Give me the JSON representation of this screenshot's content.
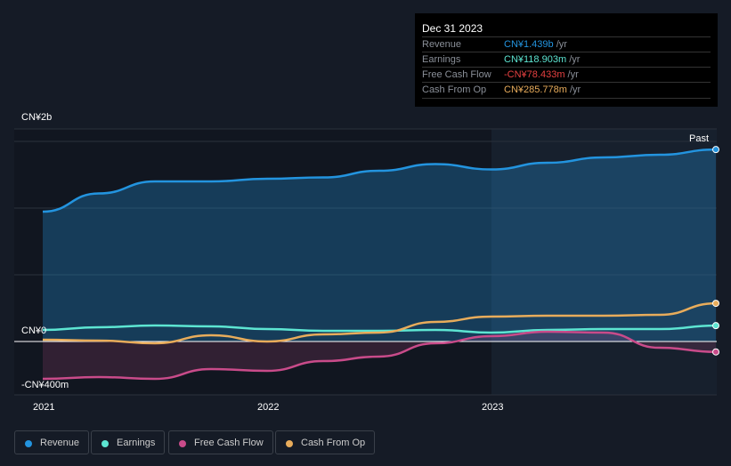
{
  "tooltip": {
    "date": "Dec 31 2023",
    "rows": [
      {
        "label": "Revenue",
        "value": "CN¥1.439b",
        "unit": "/yr",
        "color": "#2394df"
      },
      {
        "label": "Earnings",
        "value": "CN¥118.903m",
        "unit": "/yr",
        "color": "#5de5d2"
      },
      {
        "label": "Free Cash Flow",
        "value": "-CN¥78.433m",
        "unit": "/yr",
        "color": "#e64141"
      },
      {
        "label": "Cash From Op",
        "value": "CN¥285.778m",
        "unit": "/yr",
        "color": "#e8ac5b"
      }
    ]
  },
  "chart_data": {
    "type": "line",
    "x": [
      2021,
      2021.25,
      2021.5,
      2021.75,
      2022,
      2022.25,
      2022.5,
      2022.75,
      2023,
      2023.25,
      2023.5,
      2023.75,
      2024
    ],
    "ylim": [
      -0.4,
      1.59
    ],
    "yunit": "CN¥ billions",
    "y_tick_labels": [
      "CN¥2b",
      "CN¥0",
      "-CN¥400m"
    ],
    "x_tick_labels": [
      "2021",
      "2022",
      "2023"
    ],
    "past_label": "Past",
    "series": [
      {
        "name": "Revenue",
        "color": "#2394df",
        "values": [
          0.973,
          1.11,
          1.2,
          1.2,
          1.22,
          1.23,
          1.28,
          1.33,
          1.29,
          1.34,
          1.38,
          1.4,
          1.439
        ]
      },
      {
        "name": "Earnings",
        "color": "#5de5d2",
        "values": [
          0.087,
          0.107,
          0.12,
          0.113,
          0.093,
          0.08,
          0.08,
          0.087,
          0.067,
          0.087,
          0.093,
          0.093,
          0.119
        ]
      },
      {
        "name": "Free Cash Flow",
        "color": "#c94b8a",
        "values": [
          -0.28,
          -0.267,
          -0.28,
          -0.207,
          -0.22,
          -0.147,
          -0.113,
          -0.013,
          0.04,
          0.073,
          0.067,
          -0.047,
          -0.078
        ]
      },
      {
        "name": "Cash From Op",
        "color": "#e8ac5b",
        "values": [
          0.013,
          0.007,
          -0.013,
          0.047,
          0,
          0.053,
          0.067,
          0.147,
          0.187,
          0.193,
          0.193,
          0.2,
          0.286
        ]
      }
    ]
  }
}
